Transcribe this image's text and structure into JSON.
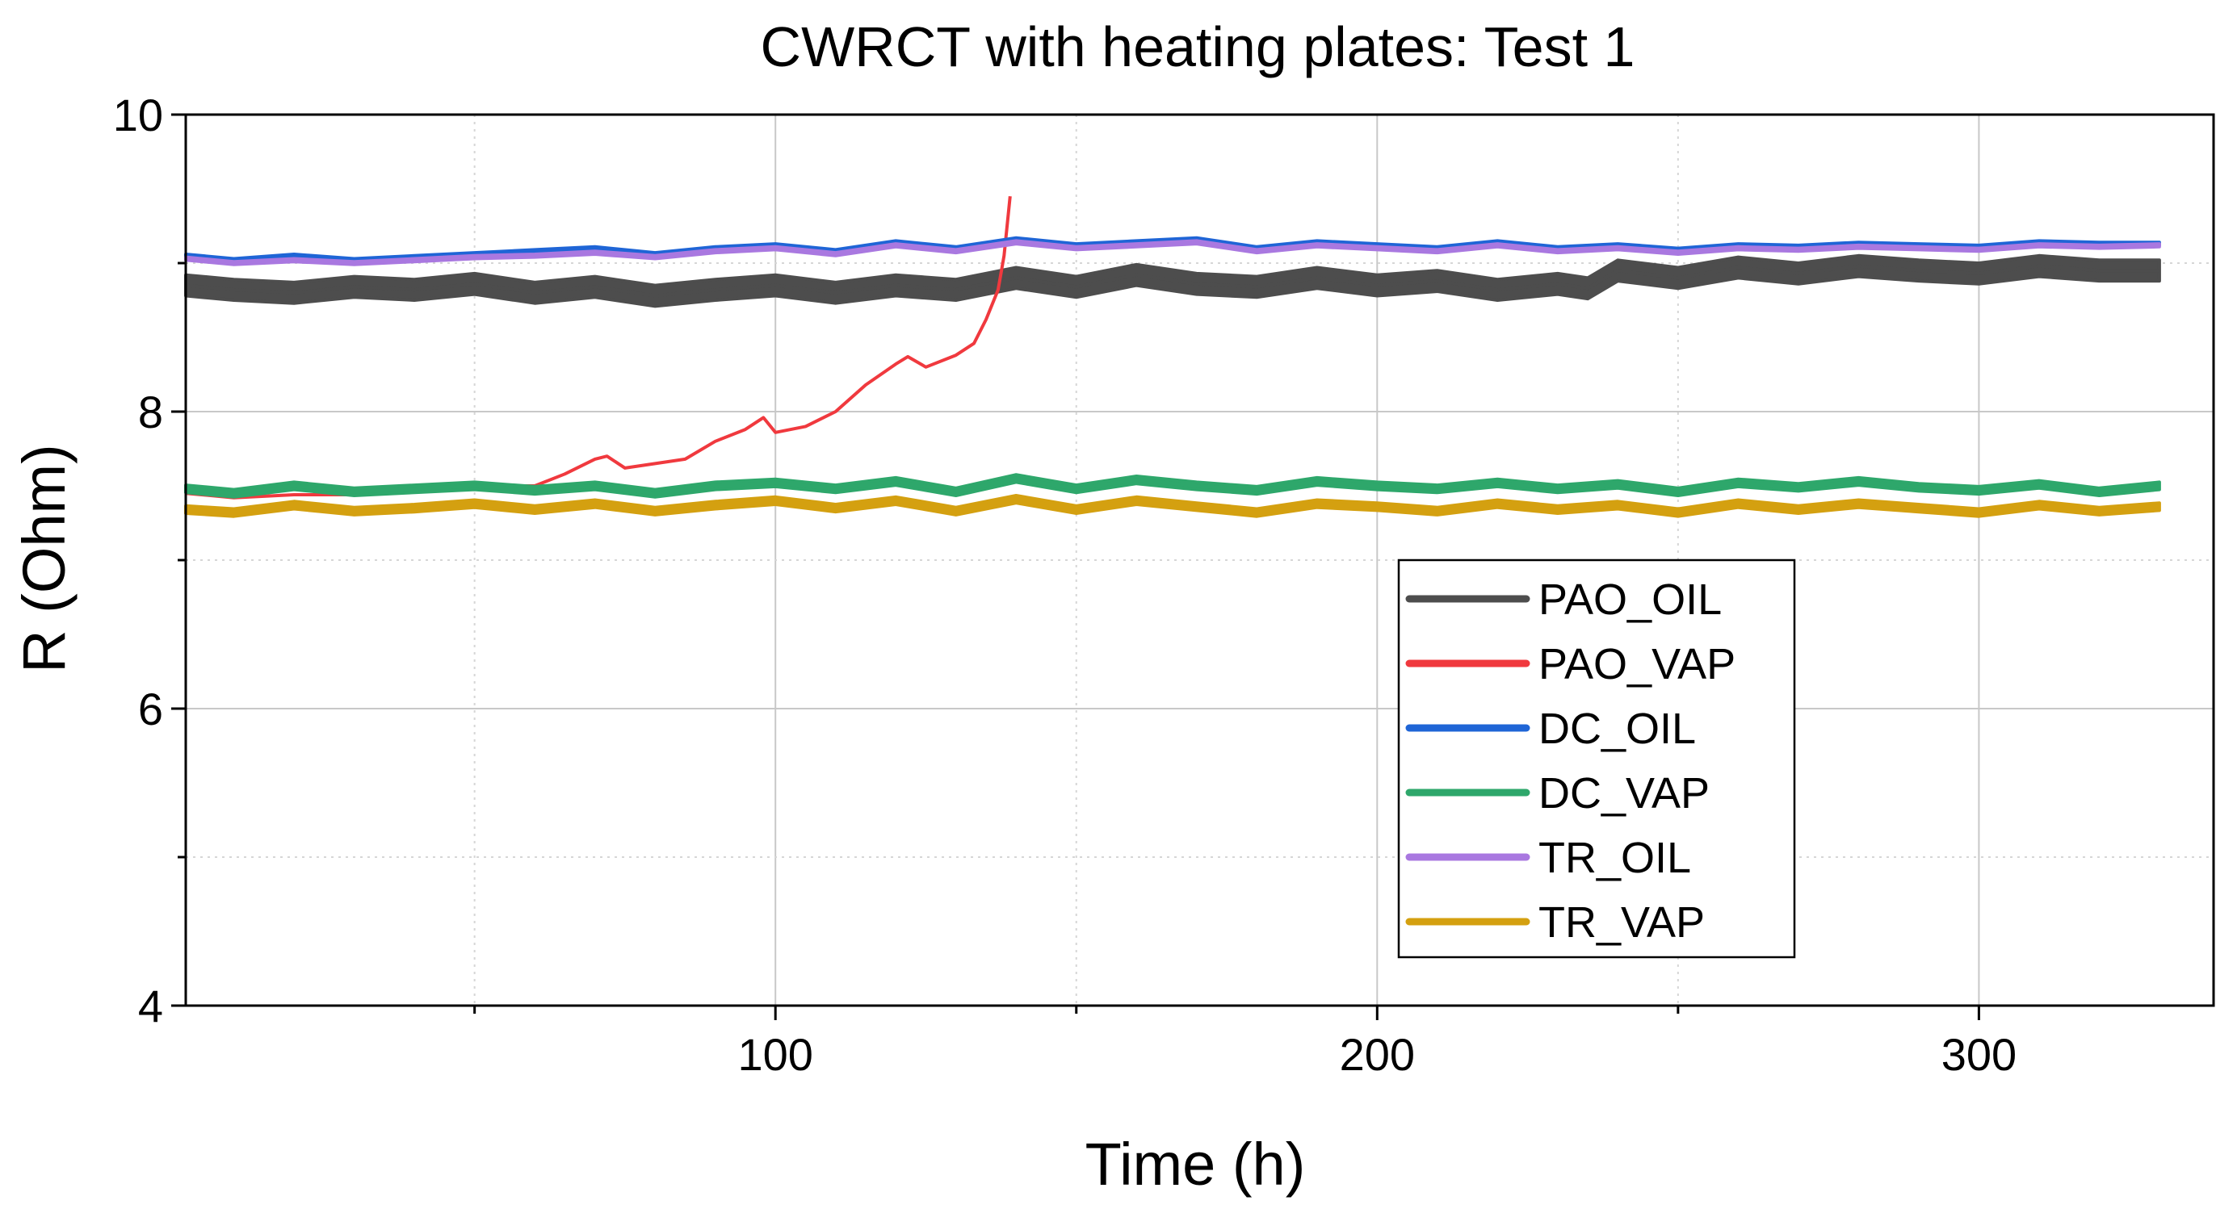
{
  "chart_data": {
    "type": "line",
    "title": "CWRCT with heating plates: Test 1",
    "xlabel": "Time (h)",
    "ylabel": "R (Ohm)",
    "xlim": [
      2,
      339
    ],
    "ylim": [
      4,
      10
    ],
    "xticks": [
      100,
      200,
      300
    ],
    "xticks_labels": [
      "100",
      "200",
      "300"
    ],
    "xminor": [
      50,
      150,
      250
    ],
    "yticks": [
      4,
      6,
      8,
      10
    ],
    "yticks_labels": [
      "4",
      "6",
      "8",
      "10"
    ],
    "yminor": [
      5,
      7,
      9
    ],
    "grid": true,
    "legend_position": "lower-right",
    "series": [
      {
        "name": "PAO_OIL",
        "color": "#4d4d4d",
        "band": 0.14,
        "x": [
          2,
          10,
          20,
          30,
          40,
          50,
          60,
          70,
          80,
          90,
          100,
          110,
          120,
          130,
          140,
          150,
          160,
          170,
          180,
          190,
          200,
          210,
          220,
          230,
          235,
          240,
          250,
          260,
          270,
          280,
          290,
          300,
          310,
          320,
          330
        ],
        "y": [
          8.85,
          8.82,
          8.8,
          8.84,
          8.82,
          8.86,
          8.8,
          8.84,
          8.78,
          8.82,
          8.85,
          8.8,
          8.85,
          8.82,
          8.9,
          8.84,
          8.92,
          8.86,
          8.84,
          8.9,
          8.85,
          8.88,
          8.82,
          8.86,
          8.83,
          8.95,
          8.9,
          8.97,
          8.93,
          8.98,
          8.95,
          8.93,
          8.98,
          8.95,
          8.95
        ]
      },
      {
        "name": "PAO_VAP",
        "color": "#f0393e",
        "band": 0,
        "x": [
          2,
          10,
          20,
          30,
          40,
          50,
          60,
          65,
          70,
          72,
          75,
          80,
          85,
          90,
          95,
          98,
          100,
          105,
          110,
          115,
          120,
          122,
          125,
          130,
          133,
          135,
          137,
          138,
          139
        ],
        "y": [
          7.45,
          7.42,
          7.44,
          7.44,
          7.46,
          7.5,
          7.5,
          7.58,
          7.68,
          7.7,
          7.62,
          7.65,
          7.68,
          7.8,
          7.88,
          7.96,
          7.86,
          7.9,
          8.0,
          8.18,
          8.32,
          8.37,
          8.3,
          8.38,
          8.46,
          8.62,
          8.82,
          9.05,
          9.45
        ]
      },
      {
        "name": "DC_OIL",
        "color": "#1f65d6",
        "band": 0.02,
        "x": [
          2,
          10,
          20,
          30,
          40,
          50,
          60,
          70,
          80,
          90,
          100,
          110,
          120,
          130,
          140,
          150,
          160,
          170,
          180,
          190,
          200,
          210,
          220,
          230,
          240,
          250,
          260,
          270,
          280,
          290,
          300,
          310,
          320,
          330
        ],
        "y": [
          9.05,
          9.02,
          9.05,
          9.02,
          9.04,
          9.06,
          9.08,
          9.1,
          9.06,
          9.1,
          9.12,
          9.08,
          9.14,
          9.1,
          9.16,
          9.12,
          9.14,
          9.16,
          9.1,
          9.14,
          9.12,
          9.1,
          9.14,
          9.1,
          9.12,
          9.09,
          9.12,
          9.11,
          9.13,
          9.12,
          9.11,
          9.14,
          9.13,
          9.13
        ]
      },
      {
        "name": "DC_VAP",
        "color": "#2ea76b",
        "band": 0.05,
        "x": [
          2,
          10,
          20,
          30,
          40,
          50,
          60,
          70,
          80,
          90,
          100,
          110,
          120,
          130,
          140,
          150,
          160,
          170,
          180,
          190,
          200,
          210,
          220,
          230,
          240,
          250,
          260,
          270,
          280,
          290,
          300,
          310,
          320,
          330
        ],
        "y": [
          7.48,
          7.45,
          7.5,
          7.46,
          7.48,
          7.5,
          7.47,
          7.5,
          7.45,
          7.5,
          7.52,
          7.48,
          7.53,
          7.46,
          7.55,
          7.48,
          7.54,
          7.5,
          7.47,
          7.53,
          7.5,
          7.48,
          7.52,
          7.48,
          7.51,
          7.46,
          7.52,
          7.49,
          7.53,
          7.49,
          7.47,
          7.51,
          7.46,
          7.5
        ]
      },
      {
        "name": "TR_OIL",
        "color": "#a978e0",
        "band": 0.02,
        "x": [
          2,
          10,
          20,
          30,
          40,
          50,
          60,
          70,
          80,
          90,
          100,
          110,
          120,
          130,
          140,
          150,
          160,
          170,
          180,
          190,
          200,
          210,
          220,
          230,
          240,
          250,
          260,
          270,
          280,
          290,
          300,
          310,
          320,
          330
        ],
        "y": [
          9.03,
          9.0,
          9.02,
          9.0,
          9.02,
          9.04,
          9.05,
          9.07,
          9.04,
          9.08,
          9.1,
          9.06,
          9.12,
          9.08,
          9.14,
          9.1,
          9.12,
          9.14,
          9.08,
          9.12,
          9.1,
          9.08,
          9.12,
          9.08,
          9.1,
          9.07,
          9.1,
          9.09,
          9.11,
          9.1,
          9.09,
          9.12,
          9.11,
          9.12
        ]
      },
      {
        "name": "TR_VAP",
        "color": "#d4a010",
        "band": 0.05,
        "x": [
          2,
          10,
          20,
          30,
          40,
          50,
          60,
          70,
          80,
          90,
          100,
          110,
          120,
          130,
          140,
          150,
          160,
          170,
          180,
          190,
          200,
          210,
          220,
          230,
          240,
          250,
          260,
          270,
          280,
          290,
          300,
          310,
          320,
          330
        ],
        "y": [
          7.34,
          7.32,
          7.37,
          7.33,
          7.35,
          7.38,
          7.34,
          7.38,
          7.33,
          7.37,
          7.4,
          7.35,
          7.4,
          7.33,
          7.41,
          7.34,
          7.4,
          7.36,
          7.32,
          7.38,
          7.36,
          7.33,
          7.38,
          7.34,
          7.37,
          7.32,
          7.38,
          7.34,
          7.38,
          7.35,
          7.32,
          7.37,
          7.33,
          7.36
        ]
      }
    ]
  }
}
